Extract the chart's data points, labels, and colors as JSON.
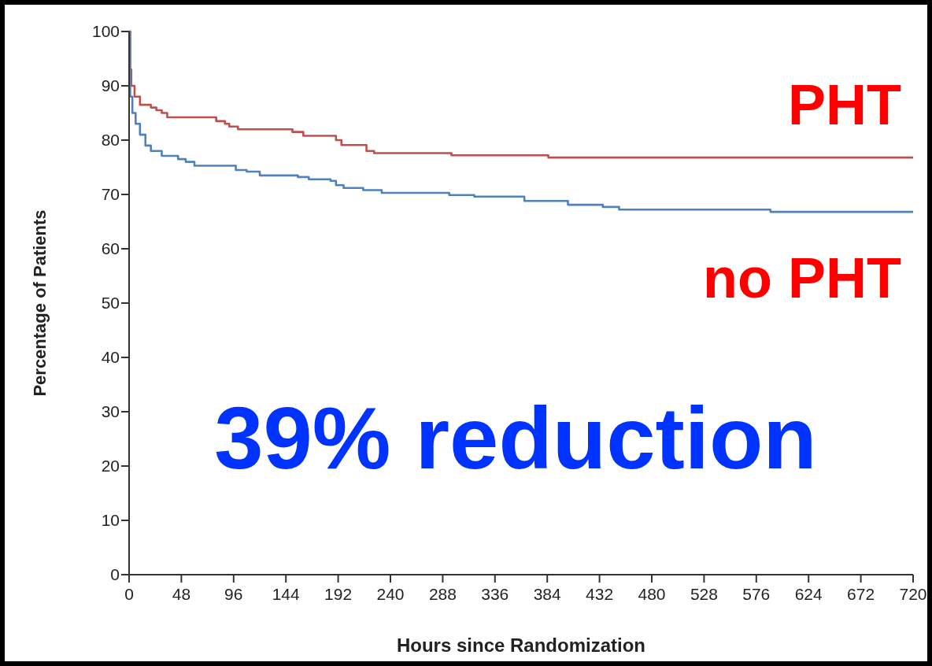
{
  "chart_data": {
    "type": "step",
    "xlabel": "Hours since Randomization",
    "ylabel": "Percentage of Patients",
    "xlim": [
      0,
      720
    ],
    "ylim": [
      0,
      100
    ],
    "xticks": [
      0,
      48,
      96,
      144,
      192,
      240,
      288,
      336,
      384,
      432,
      480,
      528,
      576,
      624,
      672,
      720
    ],
    "yticks": [
      0,
      10,
      20,
      30,
      40,
      50,
      60,
      70,
      80,
      90,
      100
    ],
    "grid": false,
    "marker": "none",
    "line_style": "solid",
    "series": [
      {
        "name": "PHT",
        "color": "#c0504d",
        "x": [
          0,
          1,
          2,
          5,
          10,
          20,
          25,
          30,
          35,
          80,
          88,
          92,
          100,
          150,
          160,
          190,
          195,
          218,
          225,
          296,
          385,
          720
        ],
        "values": [
          100,
          93,
          90,
          88,
          86.5,
          86,
          85.5,
          85,
          84.2,
          83.5,
          83,
          82.5,
          82,
          81.5,
          80.8,
          80,
          79.1,
          78,
          77.6,
          77.2,
          76.8,
          76.8
        ]
      },
      {
        "name": "no PHT",
        "color": "#4f81bd",
        "x": [
          0,
          1,
          3,
          6,
          10,
          15,
          20,
          30,
          45,
          52,
          60,
          98,
          108,
          120,
          155,
          165,
          185,
          190,
          197,
          215,
          232,
          294,
          317,
          363,
          403,
          435,
          450,
          589,
          720
        ],
        "values": [
          100,
          88,
          85,
          83,
          81,
          79,
          78,
          77.1,
          76.5,
          76,
          75.3,
          74.5,
          74.2,
          73.5,
          73.2,
          72.8,
          72.5,
          71.7,
          71.2,
          70.8,
          70.3,
          69.9,
          69.6,
          68.8,
          68.1,
          67.7,
          67.2,
          66.8,
          66.8
        ]
      }
    ],
    "annotations": [
      "39% reduction"
    ]
  }
}
